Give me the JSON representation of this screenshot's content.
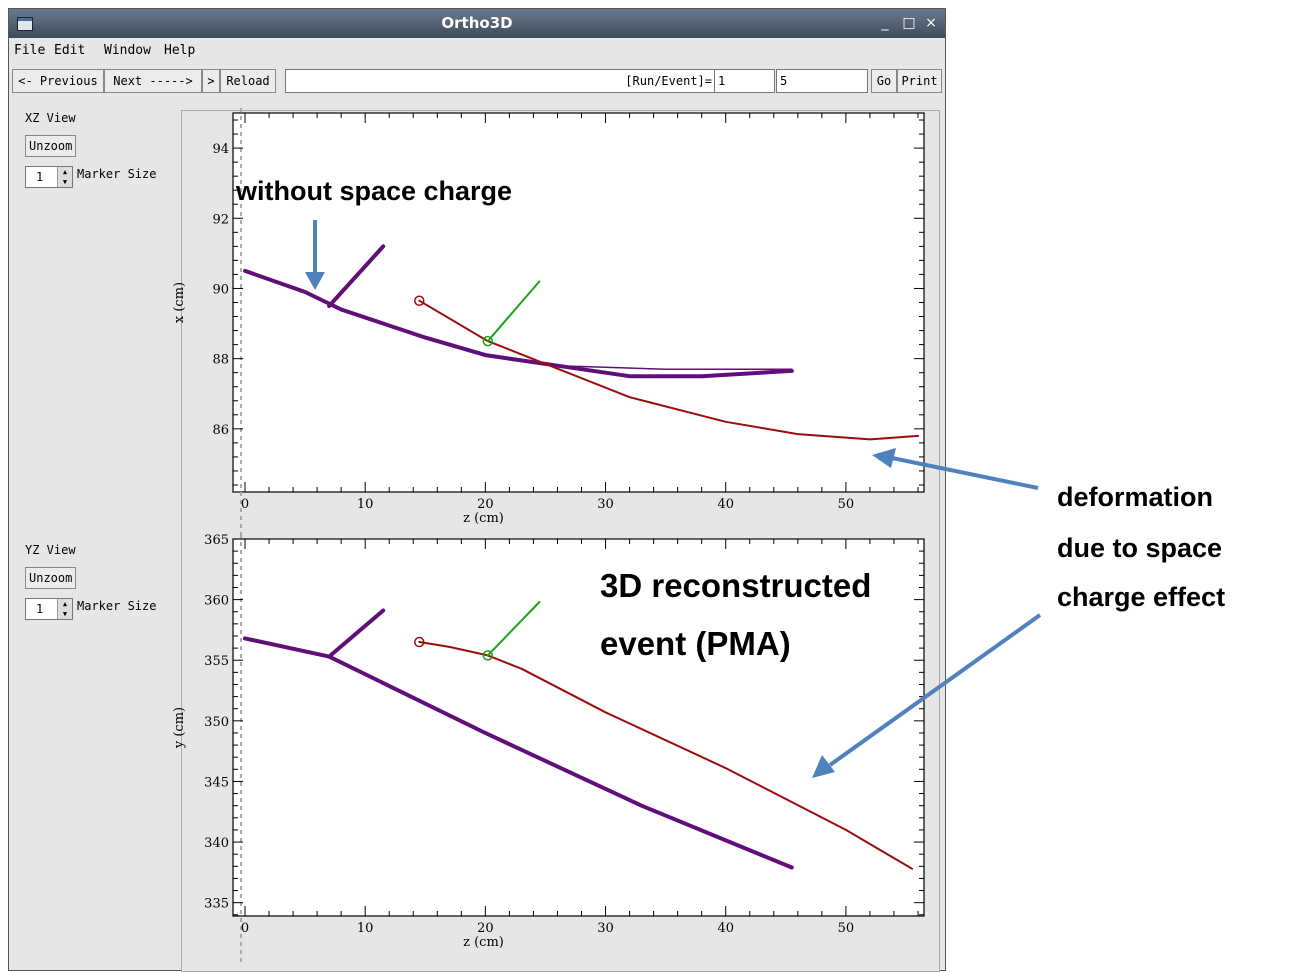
{
  "window": {
    "title": "Ortho3D"
  },
  "titlebar_buttons": {
    "minimize": "_",
    "maximize": "□",
    "close": "×"
  },
  "menu": [
    "File",
    "Edit",
    "Window",
    "Help"
  ],
  "toolbar": {
    "previous_label": "<- Previous",
    "next_label": "Next ----->",
    "step_label": ">",
    "reload_label": "Reload",
    "run_event_label": "[Run/Event]=",
    "run_value": "1",
    "event_value": "5",
    "go_label": "Go",
    "print_label": "Print"
  },
  "xz_panel": {
    "view_label": "XZ View",
    "unzoom_label": "Unzoom",
    "marker_value": "1",
    "marker_label": "Marker Size"
  },
  "yz_panel": {
    "view_label": "YZ View",
    "unzoom_label": "Unzoom",
    "marker_value": "1",
    "marker_label": "Marker Size"
  },
  "annotations": {
    "without_space_charge": "without space charge",
    "deformation_lines": [
      "deformation",
      "due to space",
      "charge effect"
    ],
    "reco_lines": [
      "3D reconstructed",
      "event (PMA)"
    ]
  },
  "colors": {
    "purple_track": "#600e7a",
    "red_track": "#9b0d0d",
    "green_track": "#19a319",
    "arrow": "#4f81bd"
  },
  "chart_data": [
    {
      "type": "line",
      "name": "xz-view",
      "xlabel": "z (cm)",
      "ylabel": "x (cm)",
      "xlim": [
        -1,
        56.5
      ],
      "ylim": [
        84.2,
        95
      ],
      "xticks": [
        0,
        10,
        20,
        30,
        40,
        50
      ],
      "xtick_labels": [
        "0",
        "10",
        "20",
        "30",
        "40",
        "50"
      ],
      "yticks": [
        86,
        88,
        90,
        92,
        94
      ],
      "ytick_labels": [
        "86",
        "88",
        "90",
        "92",
        "94"
      ],
      "series": [
        {
          "color": "purple",
          "width": 4,
          "points": [
            [
              0,
              90.5
            ],
            [
              5,
              89.9
            ],
            [
              8,
              89.4
            ],
            [
              15,
              88.6
            ],
            [
              20,
              88.1
            ],
            [
              26,
              87.8
            ],
            [
              32,
              87.5
            ],
            [
              38,
              87.5
            ],
            [
              45.5,
              87.65
            ]
          ]
        },
        {
          "color": "purple",
          "width": 1.5,
          "points": [
            [
              26,
              87.8
            ],
            [
              35,
              87.7
            ],
            [
              45.5,
              87.7
            ]
          ]
        },
        {
          "color": "purple",
          "width": 4,
          "points": [
            [
              7,
              89.5
            ],
            [
              11.5,
              91.2
            ]
          ]
        },
        {
          "color": "red",
          "width": 2,
          "points": [
            [
              14.5,
              89.65
            ],
            [
              20.2,
              88.5
            ],
            [
              25,
              87.85
            ],
            [
              32,
              86.9
            ],
            [
              40,
              86.2
            ],
            [
              46,
              85.85
            ],
            [
              52,
              85.7
            ],
            [
              56,
              85.8
            ]
          ]
        },
        {
          "color": "green",
          "width": 2,
          "points": [
            [
              20.2,
              88.5
            ],
            [
              24.5,
              90.2
            ]
          ]
        }
      ],
      "vertices": [
        {
          "color": "red",
          "point": [
            14.5,
            89.65
          ]
        },
        {
          "color": "green",
          "point": [
            20.2,
            88.5
          ]
        }
      ]
    },
    {
      "type": "line",
      "name": "yz-view",
      "xlabel": "z (cm)",
      "ylabel": "y (cm)",
      "xlim": [
        -1,
        56.5
      ],
      "ylim": [
        333.9,
        365
      ],
      "xticks": [
        0,
        10,
        20,
        30,
        40,
        50
      ],
      "xtick_labels": [
        "0",
        "10",
        "20",
        "30",
        "40",
        "50"
      ],
      "yticks": [
        335,
        340,
        345,
        350,
        355,
        360,
        365
      ],
      "ytick_labels": [
        "335",
        "340",
        "345",
        "350",
        "355",
        "360",
        "365"
      ],
      "series": [
        {
          "color": "purple",
          "width": 4,
          "points": [
            [
              0,
              356.8
            ],
            [
              7,
              355.3
            ],
            [
              20,
              349
            ],
            [
              33,
              343
            ],
            [
              45.5,
              337.9
            ]
          ]
        },
        {
          "color": "purple",
          "width": 4,
          "points": [
            [
              7,
              355.3
            ],
            [
              11.5,
              359.1
            ]
          ]
        },
        {
          "color": "red",
          "width": 2,
          "points": [
            [
              14.5,
              356.5
            ],
            [
              17,
              356.1
            ],
            [
              20.2,
              355.4
            ],
            [
              23,
              354.3
            ],
            [
              30,
              350.7
            ],
            [
              40,
              346.1
            ],
            [
              50,
              341
            ],
            [
              55.5,
              337.8
            ]
          ]
        },
        {
          "color": "green",
          "width": 2,
          "points": [
            [
              20.2,
              355.4
            ],
            [
              24.5,
              359.8
            ]
          ]
        }
      ],
      "vertices": [
        {
          "color": "red",
          "point": [
            14.5,
            356.5
          ]
        },
        {
          "color": "green",
          "point": [
            20.2,
            355.4
          ]
        }
      ]
    }
  ]
}
